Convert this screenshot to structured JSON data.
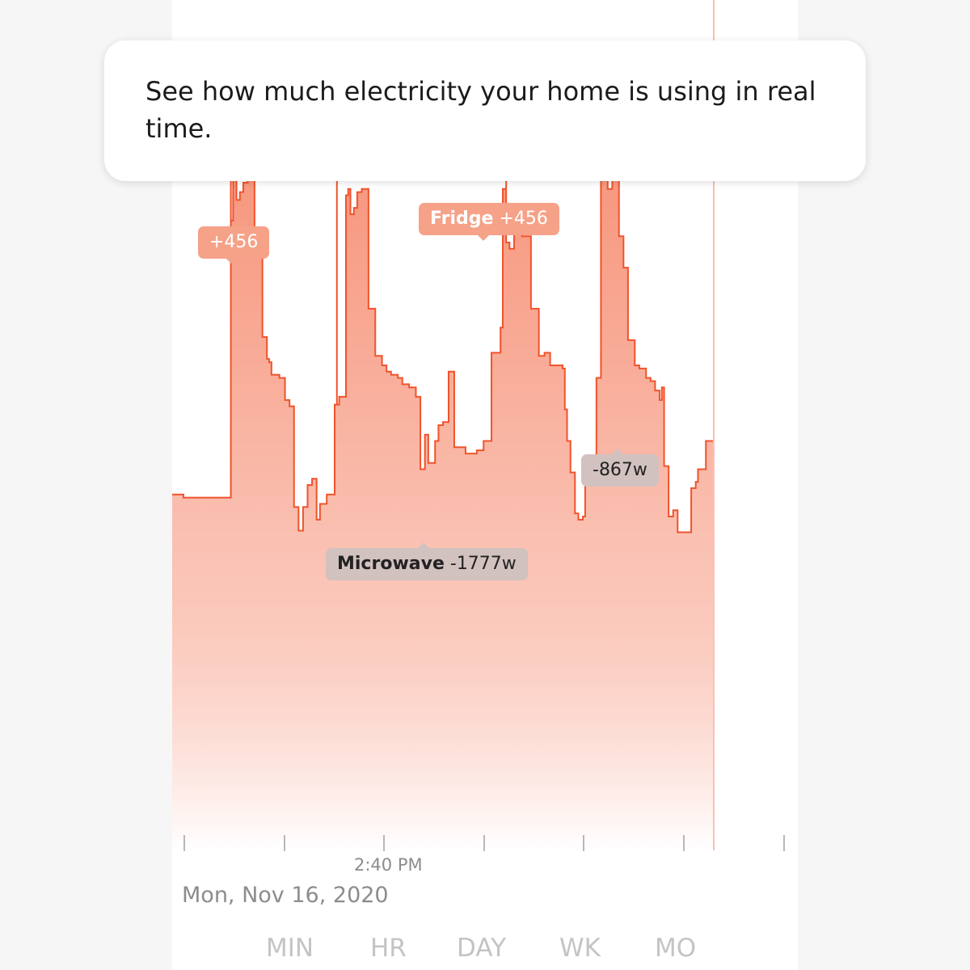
{
  "tooltip": {
    "text": "See how much electricity your home is using in real time."
  },
  "colors": {
    "line": "#f0532c",
    "fill_top": "#f79a82",
    "fill_bottom": "#ffffff",
    "now_line": "#f7c2b5",
    "tick": "#a0a0a0"
  },
  "annotations": {
    "peak1": {
      "value": "+456"
    },
    "fridge": {
      "name": "Fridge",
      "value": "+456"
    },
    "microwave": {
      "name": "Microwave",
      "value": "-1777w"
    },
    "drop": {
      "value": "-867w"
    }
  },
  "axis": {
    "time_label": "2:40 PM",
    "date_label": "Mon, Nov 16, 2020"
  },
  "range_tabs": [
    "MIN",
    "HR",
    "DAY",
    "WK",
    "MO"
  ],
  "chart_data": {
    "type": "area",
    "step": true,
    "x": [
      0,
      10,
      50,
      52,
      54,
      57,
      60,
      63,
      67,
      70,
      73,
      80,
      84,
      86,
      88,
      95,
      100,
      104,
      108,
      112,
      116,
      118,
      120,
      124,
      128,
      131,
      133,
      135,
      137,
      139,
      144,
      146,
      148,
      150,
      154,
      156,
      158,
      161,
      164,
      168,
      170,
      174,
      180,
      186,
      190,
      194,
      200,
      204,
      210,
      216,
      220,
      224,
      227,
      230,
      233,
      236,
      240,
      245,
      250,
      260,
      270,
      276,
      283,
      288,
      291,
      293,
      296,
      299,
      303,
      307,
      310,
      318,
      325,
      330,
      335,
      340,
      343,
      346,
      348,
      350,
      353,
      357,
      360,
      364,
      366,
      372,
      376,
      380,
      386,
      390,
      393,
      396,
      400,
      404,
      410,
      414,
      420,
      424,
      428,
      432,
      434,
      436,
      440,
      444,
      448,
      454,
      460,
      464,
      466,
      469,
      473,
      480
    ],
    "y": [
      1130,
      1120,
      1120,
      2000,
      2150,
      2065,
      2090,
      2120,
      2140,
      2170,
      1970,
      1630,
      1560,
      1550,
      1510,
      1500,
      1430,
      1410,
      1090,
      1015,
      1090,
      1090,
      1160,
      1180,
      1050,
      1100,
      1100,
      1100,
      1130,
      1130,
      1415,
      1415,
      1440,
      1440,
      2080,
      2100,
      2020,
      2040,
      2090,
      2100,
      2100,
      1720,
      1570,
      1540,
      1520,
      1510,
      1500,
      1480,
      1470,
      1440,
      1210,
      1320,
      1230,
      1230,
      1300,
      1350,
      1360,
      1520,
      1280,
      1260,
      1270,
      1300,
      1580,
      1580,
      1660,
      2100,
      1930,
      1910,
      2020,
      2000,
      1950,
      1720,
      1570,
      1580,
      1540,
      1540,
      1540,
      1530,
      1400,
      1300,
      1200,
      1070,
      1050,
      1060,
      1160,
      1200,
      1500,
      2240,
      2100,
      2150,
      2150,
      1950,
      1850,
      1620,
      1540,
      1530,
      1500,
      1490,
      1460,
      1430,
      1470,
      1220,
      1060,
      1080,
      1010,
      1010,
      1150,
      1170,
      1210,
      1210,
      1300,
      1300
    ],
    "spike_x": [
      52,
      146,
      296,
      442
    ],
    "spike_y": [
      2350,
      2170,
      2370,
      2480
    ],
    "xlim": [
      0,
      480
    ],
    "ylim": [
      0,
      2700
    ]
  }
}
